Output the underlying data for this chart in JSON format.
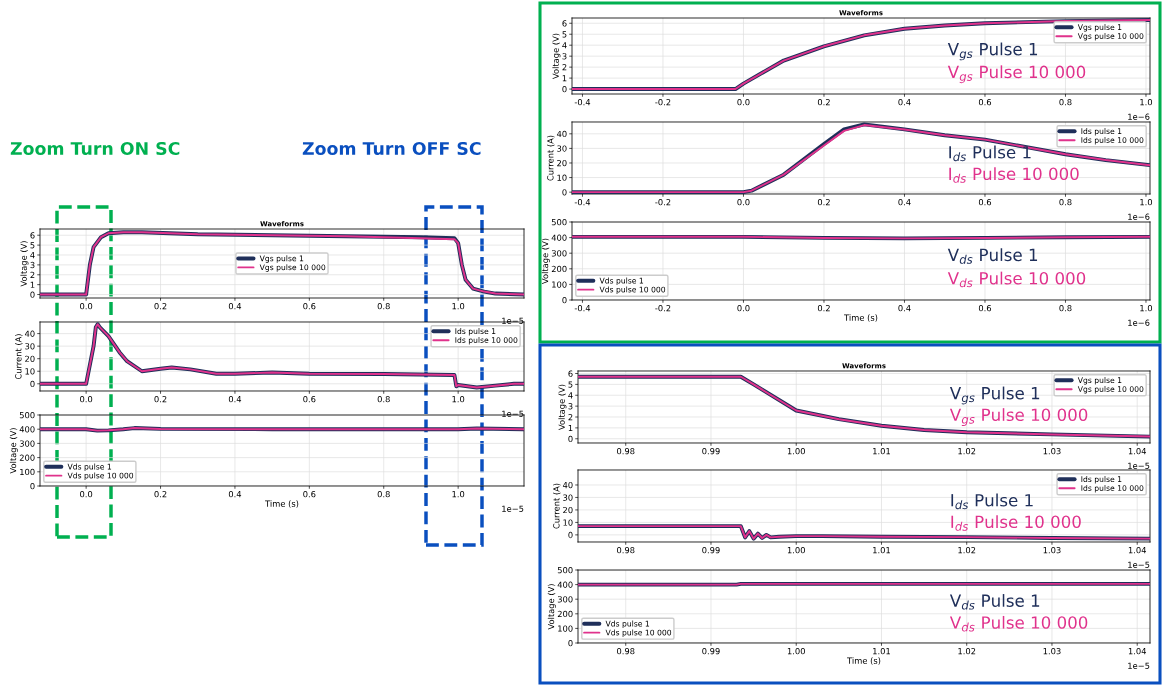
{
  "chart_data": [
    {
      "type": "line",
      "title": "Waveforms",
      "ylabel": "Voltage (V)",
      "xlim": [
        -0.124,
        1.177
      ],
      "ylim": [
        -0.35,
        6.63
      ],
      "xticks": [
        {
          "value": 0,
          "label": "0.0"
        },
        0.2,
        0.4,
        0.6,
        0.8,
        {
          "value": 1,
          "label": "1.0"
        }
      ],
      "yticks": [
        0,
        1,
        2,
        3,
        4,
        5,
        6
      ],
      "grid": true,
      "legend": "center",
      "marker": "none",
      "annotations": [
        "1e−5"
      ],
      "series": [
        {
          "name": "Vgs pulse 1",
          "color": "#1f2f5a",
          "x": [
            -0.124,
            0.0,
            0.01,
            0.02,
            0.04,
            0.06,
            0.1,
            0.15,
            0.3,
            0.5,
            0.7,
            0.9,
            0.99,
            1.0,
            1.01,
            1.02,
            1.04,
            1.07,
            1.1,
            1.177
          ],
          "values": [
            0,
            0,
            3,
            4.8,
            5.8,
            6.2,
            6.3,
            6.3,
            6.1,
            6.0,
            5.9,
            5.8,
            5.7,
            5.2,
            3,
            1.5,
            0.6,
            0.3,
            0.1,
            0
          ]
        },
        {
          "name": "Vgs pulse 10 000",
          "color": "#e0328c",
          "x": [
            -0.124,
            0.0,
            0.01,
            0.02,
            0.04,
            0.06,
            0.1,
            0.15,
            0.3,
            0.5,
            0.7,
            0.9,
            0.99,
            1.0,
            1.01,
            1.02,
            1.04,
            1.07,
            1.1,
            1.177
          ],
          "values": [
            0,
            0,
            3,
            4.8,
            5.8,
            6.2,
            6.3,
            6.3,
            6.1,
            6.0,
            5.9,
            5.7,
            5.6,
            5.2,
            3,
            1.5,
            0.6,
            0.3,
            0.1,
            0
          ]
        }
      ]
    },
    {
      "type": "line",
      "ylabel": "Current (A)",
      "xlim": [
        -0.124,
        1.177
      ],
      "ylim": [
        -5.75,
        49.25
      ],
      "xticks": [
        {
          "value": 0,
          "label": "0.0"
        },
        0.2,
        0.4,
        0.6,
        0.8,
        {
          "value": 1,
          "label": "1.0"
        }
      ],
      "yticks": [
        0,
        10,
        20,
        30,
        40
      ],
      "grid": true,
      "legend": "top right",
      "marker": "none",
      "annotations": [
        "1e−5"
      ],
      "series": [
        {
          "name": "Ids pulse 1",
          "color": "#1f2f5a",
          "x": [
            -0.124,
            0.0,
            0.02,
            0.026,
            0.031,
            0.037,
            0.06,
            0.09,
            0.11,
            0.15,
            0.2,
            0.23,
            0.28,
            0.35,
            0.4,
            0.5,
            0.6,
            0.8,
            0.99,
            0.995,
            1.0,
            1.05,
            1.1,
            1.15,
            1.177
          ],
          "values": [
            0,
            0,
            30,
            45,
            47.5,
            45,
            38,
            25,
            18,
            10,
            12,
            13,
            11.5,
            8,
            8,
            9,
            8,
            7.8,
            7,
            -2,
            -1,
            -3,
            -1.5,
            0,
            0
          ]
        },
        {
          "name": "Ids pulse 10 000",
          "color": "#e0328c",
          "x": [
            -0.124,
            0.0,
            0.02,
            0.026,
            0.031,
            0.037,
            0.06,
            0.09,
            0.11,
            0.15,
            0.2,
            0.23,
            0.28,
            0.35,
            0.4,
            0.5,
            0.6,
            0.8,
            0.99,
            0.995,
            1.0,
            1.05,
            1.1,
            1.15,
            1.177
          ],
          "values": [
            0,
            0,
            30,
            45,
            47.5,
            45,
            38,
            25,
            18,
            10,
            12,
            13,
            11.5,
            8,
            8,
            9,
            8,
            7.8,
            7,
            -2,
            -1,
            -3,
            -1.5,
            0,
            0
          ]
        }
      ]
    },
    {
      "type": "line",
      "xlabel": "Time (s)",
      "ylabel": "Voltage (V)",
      "xlim": [
        -0.124,
        1.177
      ],
      "ylim": [
        0,
        500
      ],
      "xticks": [
        {
          "value": 0,
          "label": "0.0"
        },
        0.2,
        0.4,
        0.6,
        0.8,
        {
          "value": 1,
          "label": "1.0"
        }
      ],
      "yticks": [
        0,
        100,
        200,
        300,
        400,
        500
      ],
      "grid": true,
      "legend": "bottom left",
      "marker": "none",
      "annotations": [
        "1e−5"
      ],
      "series": [
        {
          "name": "Vds pulse 1",
          "color": "#1f2f5a",
          "x": [
            -0.124,
            0.0,
            0.03,
            0.06,
            0.1,
            0.13,
            0.2,
            0.5,
            0.9,
            1.0,
            1.05,
            1.177
          ],
          "values": [
            400,
            400,
            390,
            392,
            400,
            408,
            402,
            400,
            400,
            400,
            405,
            400
          ]
        },
        {
          "name": "Vds pulse 10 000",
          "color": "#e0328c",
          "x": [
            -0.124,
            0.0,
            0.03,
            0.06,
            0.1,
            0.13,
            0.2,
            0.5,
            0.9,
            1.0,
            1.05,
            1.177
          ],
          "values": [
            400,
            400,
            390,
            392,
            400,
            408,
            402,
            400,
            400,
            400,
            405,
            400
          ]
        }
      ]
    },
    {
      "type": "line",
      "title": "Waveforms",
      "ylabel": "Voltage (V)",
      "xlim": [
        -0.426,
        1.01
      ],
      "ylim": [
        -0.45,
        6.48
      ],
      "xticks": [
        -0.4,
        -0.2,
        {
          "value": 0,
          "label": "0.0"
        },
        0.2,
        0.4,
        0.6,
        0.8,
        {
          "value": 1,
          "label": "1.0"
        }
      ],
      "yticks": [
        0,
        1,
        2,
        3,
        4,
        5,
        6
      ],
      "grid": true,
      "legend": "top right",
      "marker": "none",
      "annotations": [
        "1e−6",
        "V$_{gs}$ Pulse 1",
        "V$_{gs}$ Pulse 10 000"
      ],
      "series": [
        {
          "name": "Vgs pulse 1",
          "color": "#1f2f5a",
          "x": [
            -0.426,
            -0.02,
            0.0,
            0.1,
            0.2,
            0.3,
            0.4,
            0.5,
            0.6,
            0.8,
            1.01
          ],
          "values": [
            0,
            0,
            0.5,
            2.6,
            3.9,
            4.9,
            5.5,
            5.8,
            6.0,
            6.2,
            6.3
          ]
        },
        {
          "name": "Vgs pulse 10 000",
          "color": "#e0328c",
          "x": [
            -0.426,
            -0.02,
            0.0,
            0.1,
            0.2,
            0.3,
            0.4,
            0.5,
            0.6,
            0.8,
            1.01
          ],
          "values": [
            0,
            0,
            0.5,
            2.6,
            3.9,
            4.9,
            5.5,
            5.8,
            6.0,
            6.2,
            6.3
          ]
        }
      ]
    },
    {
      "type": "line",
      "ylabel": "Current (A)",
      "xlim": [
        -0.426,
        1.01
      ],
      "ylim": [
        -1.27,
        48.1
      ],
      "xticks": [
        -0.4,
        -0.2,
        {
          "value": 0,
          "label": "0.0"
        },
        0.2,
        0.4,
        0.6,
        0.8,
        {
          "value": 1,
          "label": "1.0"
        }
      ],
      "yticks": [
        0,
        10,
        20,
        30,
        40
      ],
      "grid": true,
      "legend": "top right",
      "marker": "none",
      "annotations": [
        "1e−6",
        "I$_{ds}$ Pulse 1",
        "I$_{ds}$ Pulse 10 000"
      ],
      "series": [
        {
          "name": "Ids pulse 1",
          "color": "#1f2f5a",
          "x": [
            -0.426,
            0.0,
            0.02,
            0.1,
            0.2,
            0.25,
            0.3,
            0.4,
            0.5,
            0.6,
            0.7,
            0.8,
            0.9,
            1.01
          ],
          "values": [
            0,
            0,
            1,
            12,
            33,
            43,
            46.5,
            43,
            39,
            36,
            31,
            26,
            22,
            18.5
          ]
        },
        {
          "name": "Ids pulse 10 000",
          "color": "#e0328c",
          "x": [
            -0.426,
            0.0,
            0.02,
            0.1,
            0.2,
            0.25,
            0.3,
            0.4,
            0.5,
            0.6,
            0.7,
            0.8,
            0.9,
            1.01
          ],
          "values": [
            0,
            0,
            1,
            12,
            32,
            42,
            46,
            43,
            39,
            36,
            31,
            26,
            22,
            18.5
          ]
        }
      ]
    },
    {
      "type": "line",
      "xlabel": "Time (s)",
      "ylabel": "Voltage (V)",
      "xlim": [
        -0.426,
        1.01
      ],
      "ylim": [
        0,
        500
      ],
      "xticks": [
        -0.4,
        -0.2,
        {
          "value": 0,
          "label": "0.0"
        },
        0.2,
        0.4,
        0.6,
        0.8,
        {
          "value": 1,
          "label": "1.0"
        }
      ],
      "yticks": [
        0,
        100,
        200,
        300,
        400,
        500
      ],
      "grid": true,
      "legend": "bottom left",
      "marker": "none",
      "annotations": [
        "1e−6",
        "V$_{ds}$ Pulse 1",
        "V$_{ds}$ Pulse 10 000"
      ],
      "series": [
        {
          "name": "Vds pulse 1",
          "color": "#1f2f5a",
          "x": [
            -0.426,
            0.0,
            0.2,
            0.4,
            0.6,
            0.8,
            1.01
          ],
          "values": [
            405,
            405,
            398,
            395,
            398,
            402,
            405
          ]
        },
        {
          "name": "Vds pulse 10 000",
          "color": "#e0328c",
          "x": [
            -0.426,
            0.0,
            0.2,
            0.4,
            0.6,
            0.8,
            1.01
          ],
          "values": [
            405,
            405,
            398,
            395,
            398,
            402,
            405
          ]
        }
      ]
    },
    {
      "type": "line",
      "title": "Waveforms",
      "ylabel": "Voltage (V)",
      "xlim": [
        0.9744,
        1.0415
      ],
      "ylim": [
        -0.39,
        6.23
      ],
      "xticks": [
        {
          "value": 0.98,
          "label": "0.98"
        },
        {
          "value": 0.99,
          "label": "0.99"
        },
        {
          "value": 1.0,
          "label": "1.00"
        },
        {
          "value": 1.01,
          "label": "1.01"
        },
        {
          "value": 1.02,
          "label": "1.02"
        },
        {
          "value": 1.03,
          "label": "1.03"
        },
        {
          "value": 1.04,
          "label": "1.04"
        }
      ],
      "yticks": [
        0,
        1,
        2,
        3,
        4,
        5,
        6
      ],
      "grid": true,
      "legend": "top right",
      "marker": "none",
      "annotations": [
        "1e−5",
        "V$_{gs}$ Pulse 1",
        "V$_{gs}$ Pulse 10 000"
      ],
      "series": [
        {
          "name": "Vgs pulse 1",
          "color": "#1f2f5a",
          "x": [
            0.9744,
            0.9935,
            0.995,
            1.0,
            1.005,
            1.01,
            1.015,
            1.02,
            1.03,
            1.0415
          ],
          "values": [
            5.7,
            5.7,
            5.0,
            2.6,
            1.8,
            1.2,
            0.8,
            0.6,
            0.4,
            0.2
          ]
        },
        {
          "name": "Vgs pulse 10 000",
          "color": "#e0328c",
          "x": [
            0.9744,
            0.9935,
            0.995,
            1.0,
            1.005,
            1.01,
            1.015,
            1.02,
            1.03,
            1.0415
          ],
          "values": [
            5.7,
            5.7,
            5.0,
            2.6,
            1.8,
            1.2,
            0.8,
            0.6,
            0.4,
            0.2
          ]
        }
      ]
    },
    {
      "type": "line",
      "ylabel": "Current (A)",
      "xlim": [
        0.9744,
        1.0415
      ],
      "ylim": [
        -5.7,
        52
      ],
      "xticks": [
        {
          "value": 0.98,
          "label": "0.98"
        },
        {
          "value": 0.99,
          "label": "0.99"
        },
        {
          "value": 1.0,
          "label": "1.00"
        },
        {
          "value": 1.01,
          "label": "1.01"
        },
        {
          "value": 1.02,
          "label": "1.02"
        },
        {
          "value": 1.03,
          "label": "1.03"
        },
        {
          "value": 1.04,
          "label": "1.04"
        }
      ],
      "yticks": [
        0,
        10,
        20,
        30,
        40
      ],
      "grid": true,
      "legend": "top right",
      "marker": "none",
      "annotations": [
        "1e−5",
        "I$_{ds}$ Pulse 1",
        "I$_{ds}$ Pulse 10 000"
      ],
      "series": [
        {
          "name": "Ids pulse 1",
          "color": "#1f2f5a",
          "x": [
            0.9744,
            0.9935,
            0.994,
            0.9945,
            0.995,
            0.9955,
            0.996,
            0.9965,
            0.997,
            0.998,
            1.0,
            1.003,
            1.01,
            1.02,
            1.03,
            1.0415
          ],
          "values": [
            7,
            7,
            -2,
            3,
            -3,
            1,
            -2.5,
            0,
            -2,
            -1.5,
            -1,
            -1,
            -1.5,
            -1.8,
            -2.5,
            -3
          ]
        },
        {
          "name": "Ids pulse 10 000",
          "color": "#e0328c",
          "x": [
            0.9744,
            0.9935,
            0.994,
            0.9945,
            0.995,
            0.9955,
            0.996,
            0.9965,
            0.997,
            0.998,
            1.0,
            1.003,
            1.01,
            1.02,
            1.03,
            1.0415
          ],
          "values": [
            7,
            7,
            -2,
            3,
            -3,
            1,
            -2.5,
            0,
            -2,
            -1.5,
            -1,
            -1,
            -1.5,
            -1.8,
            -2.5,
            -3
          ]
        }
      ]
    },
    {
      "type": "line",
      "xlabel": "Time (s)",
      "ylabel": "Voltage (V)",
      "xlim": [
        0.9744,
        1.0415
      ],
      "ylim": [
        0,
        500
      ],
      "xticks": [
        {
          "value": 0.98,
          "label": "0.98"
        },
        {
          "value": 0.99,
          "label": "0.99"
        },
        {
          "value": 1.0,
          "label": "1.00"
        },
        {
          "value": 1.01,
          "label": "1.01"
        },
        {
          "value": 1.02,
          "label": "1.02"
        },
        {
          "value": 1.03,
          "label": "1.03"
        },
        {
          "value": 1.04,
          "label": "1.04"
        }
      ],
      "yticks": [
        0,
        100,
        200,
        300,
        400,
        500
      ],
      "grid": true,
      "legend": "bottom left",
      "marker": "none",
      "annotations": [
        "1e−5",
        "V$_{ds}$ Pulse 1",
        "V$_{ds}$ Pulse 10 000"
      ],
      "series": [
        {
          "name": "Vds pulse 1",
          "color": "#1f2f5a",
          "x": [
            0.9744,
            0.993,
            0.9935,
            1.0415
          ],
          "values": [
            400,
            400,
            405,
            405
          ]
        },
        {
          "name": "Vds pulse 10 000",
          "color": "#e0328c",
          "x": [
            0.9744,
            0.993,
            0.9935,
            1.0415
          ],
          "values": [
            400,
            400,
            405,
            405
          ]
        }
      ]
    },
    {
      "type": "other",
      "annotations": [
        "Zoom Turn ON SC",
        "Zoom Turn OFF SC"
      ],
      "colors": [
        "#00b050",
        "#0a4fbf"
      ]
    }
  ]
}
